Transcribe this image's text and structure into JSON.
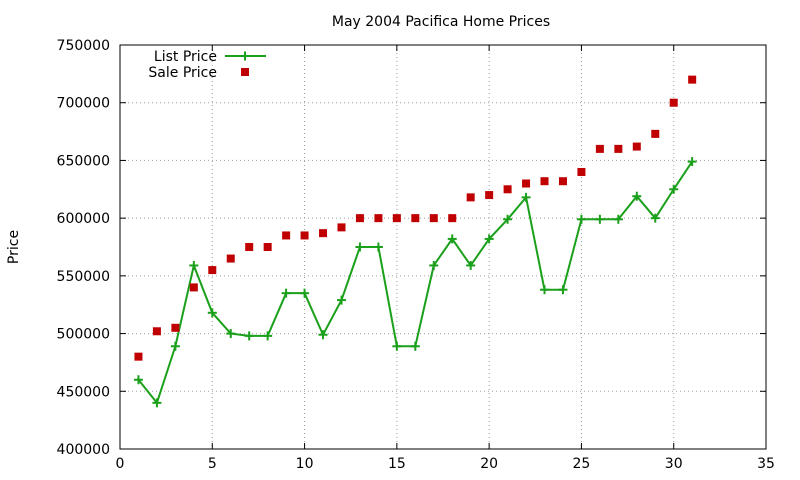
{
  "chart_data": {
    "type": "line",
    "title": "May 2004 Pacifica Home Prices",
    "xlabel": "",
    "ylabel": "Price",
    "xlim": [
      0,
      35
    ],
    "ylim": [
      400000,
      750000
    ],
    "x_ticks": [
      0,
      5,
      10,
      15,
      20,
      25,
      30,
      35
    ],
    "y_ticks": [
      400000,
      450000,
      500000,
      550000,
      600000,
      650000,
      700000,
      750000
    ],
    "grid": true,
    "legend_position": "top-left",
    "series": [
      {
        "name": "List Price",
        "style": "line-with-plus-markers",
        "color": "#1aa01a",
        "x": [
          1,
          2,
          3,
          4,
          5,
          6,
          7,
          8,
          9,
          10,
          11,
          12,
          13,
          14,
          15,
          16,
          17,
          18,
          19,
          20,
          21,
          22,
          23,
          24,
          25,
          26,
          27,
          28,
          29,
          30,
          31
        ],
        "y": [
          460000,
          440000,
          489000,
          559000,
          518000,
          500000,
          498000,
          498000,
          535000,
          535000,
          499000,
          529000,
          575000,
          575000,
          489000,
          489000,
          559000,
          582000,
          559000,
          582000,
          599000,
          618000,
          538000,
          538000,
          599000,
          599000,
          599000,
          619000,
          600000,
          625000,
          649000
        ]
      },
      {
        "name": "Sale Price",
        "style": "square-markers",
        "color": "#c00000",
        "x": [
          1,
          2,
          3,
          4,
          5,
          6,
          7,
          8,
          9,
          10,
          11,
          12,
          13,
          14,
          15,
          16,
          17,
          18,
          19,
          20,
          21,
          22,
          23,
          24,
          25,
          26,
          27,
          28,
          29,
          30,
          31
        ],
        "y": [
          480000,
          502000,
          505000,
          540000,
          555000,
          565000,
          575000,
          575000,
          585000,
          585000,
          587000,
          592000,
          600000,
          600000,
          600000,
          600000,
          600000,
          600000,
          618000,
          620000,
          625000,
          630000,
          632000,
          632000,
          640000,
          660000,
          660000,
          662000,
          673000,
          700000,
          720000
        ]
      }
    ]
  }
}
